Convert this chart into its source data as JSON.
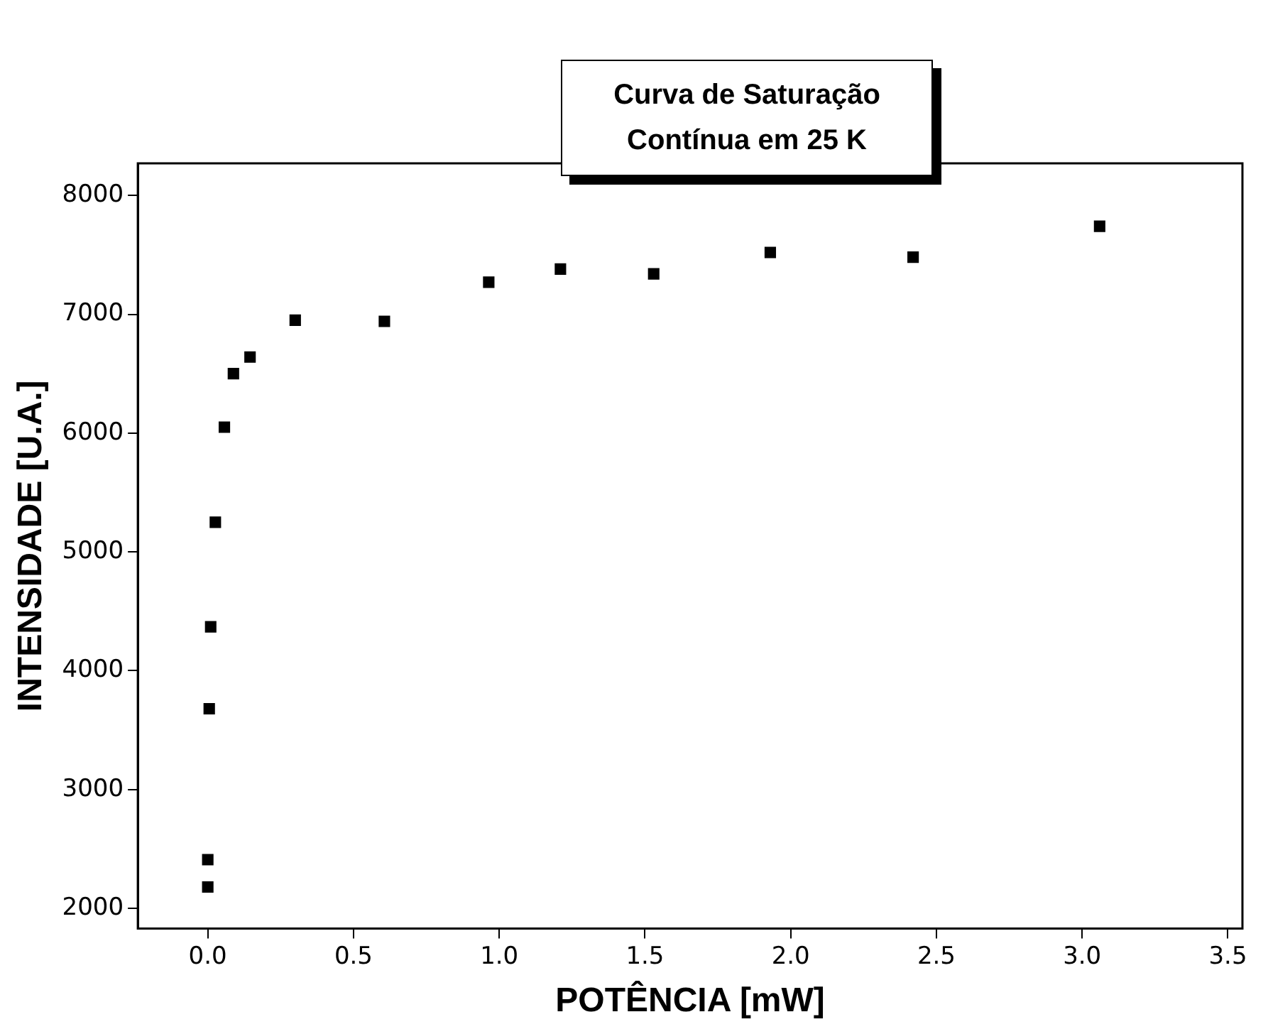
{
  "chart_data": {
    "type": "scatter",
    "title": "Curva de Saturação Contínua em 25 K",
    "xlabel": "POTÊNCIA [mW]",
    "ylabel": "INTENSIDADE [U.A.]",
    "x": [
      0,
      0,
      0.005,
      0.01,
      0.026,
      0.057,
      0.088,
      0.145,
      0.3,
      0.606,
      0.964,
      1.21,
      1.53,
      1.93,
      2.42,
      3.06
    ],
    "series": [
      {
        "color": "#000000",
        "values": [
          2180,
          2410,
          3680,
          4370,
          5250,
          6050,
          6500,
          6640,
          6950,
          6940,
          7270,
          7380,
          7340,
          7520,
          7480,
          7740
        ]
      }
    ],
    "xlim": [
      -0.24,
      3.55
    ],
    "xticks": [
      {
        "value": 0,
        "label": "0.0"
      },
      {
        "value": 0.5,
        "label": "0.5"
      },
      {
        "value": 1,
        "label": "1.0"
      },
      {
        "value": 1.5,
        "label": "1.5"
      },
      {
        "value": 2,
        "label": "2.0"
      },
      {
        "value": 2.5,
        "label": "2.5"
      },
      {
        "value": 3,
        "label": "3.0"
      },
      {
        "value": 3.5,
        "label": "3.5"
      }
    ],
    "ylim": [
      1830,
      8270
    ],
    "yticks": [
      2000,
      3000,
      4000,
      5000,
      6000,
      7000,
      8000
    ],
    "marker": "square",
    "grid": false,
    "legend": false
  }
}
